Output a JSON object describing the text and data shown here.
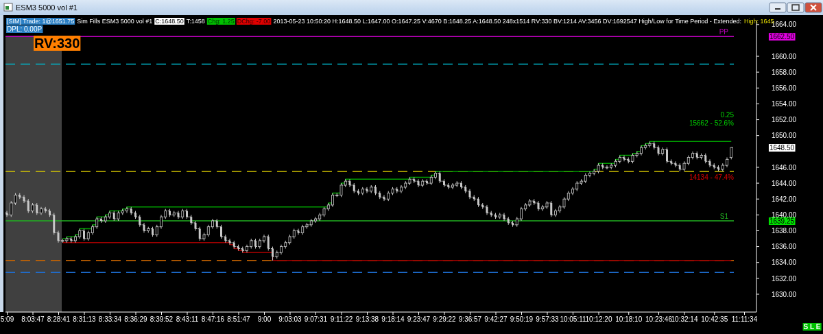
{
  "chart_data": {
    "type": "candlestick",
    "title": "ESM3  5000 vol  #1",
    "color": "#c8c8c8",
    "categories": [
      "5:09",
      null,
      null,
      null,
      null,
      null,
      "8:03:47",
      null,
      null,
      null,
      null,
      null,
      "8:28:41",
      null,
      null,
      null,
      null,
      null,
      "8:31:13",
      null,
      null,
      null,
      null,
      null,
      "8:33:34",
      null,
      null,
      null,
      null,
      null,
      "8:36:29",
      null,
      null,
      null,
      null,
      null,
      "8:39:52",
      null,
      null,
      null,
      null,
      null,
      "8:43:11",
      null,
      null,
      null,
      null,
      null,
      "8:47:16",
      null,
      null,
      null,
      null,
      null,
      "8:51:47",
      null,
      null,
      null,
      null,
      null,
      "9:00",
      null,
      null,
      null,
      null,
      null,
      "9:03:03",
      null,
      null,
      null,
      null,
      null,
      "9:07:31",
      null,
      null,
      null,
      null,
      null,
      "9:11:22",
      null,
      null,
      null,
      null,
      null,
      "9:13:38",
      null,
      null,
      null,
      null,
      null,
      "9:18:14",
      null,
      null,
      null,
      null,
      null,
      "9:23:47",
      null,
      null,
      null,
      null,
      null,
      "9:29:22",
      null,
      null,
      null,
      null,
      null,
      "9:36:57",
      null,
      null,
      null,
      null,
      null,
      "9:42:27",
      null,
      null,
      null,
      null,
      null,
      "9:50:19",
      null,
      null,
      null,
      null,
      null,
      "9:57:33",
      null,
      null,
      null,
      null,
      null,
      "10:05:11",
      null,
      null,
      null,
      null,
      null,
      "10:12:20",
      null,
      null,
      null,
      null,
      null,
      null,
      "10:18:10",
      null,
      null,
      null,
      null,
      null,
      null,
      "10:23:46",
      null,
      null,
      null,
      null,
      null,
      "10:32:14",
      null,
      null,
      null,
      null,
      null,
      null,
      "10:42:35",
      null,
      null,
      null,
      null,
      null,
      null,
      "11:11:34"
    ],
    "ohlc": [
      [
        1640.25,
        1640.5,
        1639.75,
        1640
      ],
      [
        1640,
        1641.75,
        1639.75,
        1641.5
      ],
      [
        1641.5,
        1642.75,
        1641.25,
        1642.5
      ],
      [
        1642.5,
        1642.75,
        1642,
        1642.25
      ],
      [
        1642.25,
        1642.5,
        1641.5,
        1641.75
      ],
      [
        1641.75,
        1642,
        1640.25,
        1640.5
      ],
      [
        1640.5,
        1641.5,
        1640.25,
        1641.25
      ],
      [
        1641.25,
        1641.5,
        1640,
        1640.25
      ],
      [
        1640.25,
        1641,
        1640,
        1640.75
      ],
      [
        1640.75,
        1641,
        1640.25,
        1640.5
      ],
      [
        1640.5,
        1640.75,
        1639.75,
        1640
      ],
      [
        1640,
        1640.25,
        1637.5,
        1637.75
      ],
      [
        1637.75,
        1638,
        1636.5,
        1636.75
      ],
      [
        1636.75,
        1637,
        1636.5,
        1636.75
      ],
      [
        1636.75,
        1637.25,
        1636.5,
        1637
      ],
      [
        1637,
        1637.25,
        1636.5,
        1636.75
      ],
      [
        1636.75,
        1637.5,
        1636.5,
        1637.25
      ],
      [
        1637.25,
        1638.25,
        1637,
        1638
      ],
      [
        1638,
        1638.25,
        1636.75,
        1637
      ],
      [
        1637,
        1638,
        1636.75,
        1637.75
      ],
      [
        1637.75,
        1638.75,
        1637.5,
        1638.5
      ],
      [
        1638.5,
        1639.75,
        1638.25,
        1639.5
      ],
      [
        1639.5,
        1639.75,
        1639,
        1639.25
      ],
      [
        1639.25,
        1640,
        1639,
        1639.75
      ],
      [
        1639.75,
        1640.5,
        1639.5,
        1640.25
      ],
      [
        1640.25,
        1640.5,
        1639.25,
        1639.5
      ],
      [
        1639.5,
        1640.5,
        1639.25,
        1640.25
      ],
      [
        1640.25,
        1640.75,
        1640,
        1640.5
      ],
      [
        1640.5,
        1641,
        1640.25,
        1640.75
      ],
      [
        1640.75,
        1641,
        1640,
        1640.25
      ],
      [
        1640.25,
        1640.5,
        1639.5,
        1639.75
      ],
      [
        1639.75,
        1640,
        1638.5,
        1638.75
      ],
      [
        1638.75,
        1639,
        1637.75,
        1638
      ],
      [
        1638,
        1638.5,
        1637.75,
        1638.25
      ],
      [
        1638.25,
        1638.5,
        1637.25,
        1637.5
      ],
      [
        1637.5,
        1638.75,
        1637.25,
        1638.5
      ],
      [
        1638.5,
        1640,
        1638.25,
        1639.75
      ],
      [
        1639.75,
        1640.75,
        1639.5,
        1640.5
      ],
      [
        1640.5,
        1640.75,
        1639.75,
        1640
      ],
      [
        1640,
        1640.5,
        1639.75,
        1640.25
      ],
      [
        1640.25,
        1640.5,
        1639.5,
        1639.75
      ],
      [
        1639.75,
        1640.75,
        1639.5,
        1640.5
      ],
      [
        1640.5,
        1640.75,
        1639.5,
        1639.75
      ],
      [
        1639.75,
        1640,
        1638.75,
        1639
      ],
      [
        1639,
        1639.25,
        1638,
        1638.25
      ],
      [
        1638.25,
        1638.5,
        1636.75,
        1637
      ],
      [
        1637,
        1637.75,
        1636.75,
        1637.5
      ],
      [
        1637.5,
        1638.75,
        1637.25,
        1638.5
      ],
      [
        1638.5,
        1639.5,
        1638.25,
        1639.25
      ],
      [
        1639.25,
        1639.5,
        1638.25,
        1638.5
      ],
      [
        1638.5,
        1638.75,
        1637,
        1637.25
      ],
      [
        1637.25,
        1637.5,
        1636.5,
        1636.75
      ],
      [
        1636.75,
        1637,
        1636.25,
        1636.5
      ],
      [
        1636.5,
        1636.75,
        1635.75,
        1636
      ],
      [
        1636,
        1636.25,
        1635.5,
        1635.75
      ],
      [
        1635.75,
        1636,
        1635.25,
        1635.5
      ],
      [
        1635.5,
        1636.25,
        1635.25,
        1636
      ],
      [
        1636,
        1637,
        1635.75,
        1636.75
      ],
      [
        1636.75,
        1637,
        1635.75,
        1636
      ],
      [
        1636,
        1637,
        1635.75,
        1636.75
      ],
      [
        1636.75,
        1637.5,
        1636.5,
        1637.25
      ],
      [
        1637.25,
        1637.5,
        1635.5,
        1635.75
      ],
      [
        1635.75,
        1636,
        1634.25,
        1634.75
      ],
      [
        1634.75,
        1635.5,
        1634.5,
        1635.25
      ],
      [
        1635.25,
        1636.25,
        1635,
        1636
      ],
      [
        1636,
        1636.75,
        1635.75,
        1636.5
      ],
      [
        1636.5,
        1637.5,
        1636.25,
        1637.25
      ],
      [
        1637.25,
        1638.25,
        1637,
        1638
      ],
      [
        1638,
        1638.25,
        1637.5,
        1637.75
      ],
      [
        1637.75,
        1638.75,
        1637.5,
        1638.5
      ],
      [
        1638.5,
        1639,
        1638.25,
        1638.75
      ],
      [
        1638.75,
        1639.5,
        1638.5,
        1639.25
      ],
      [
        1639.25,
        1639.75,
        1639,
        1639.5
      ],
      [
        1639.5,
        1640.25,
        1639.25,
        1640
      ],
      [
        1640,
        1641,
        1639.75,
        1640.75
      ],
      [
        1640.75,
        1641.5,
        1640.5,
        1641.25
      ],
      [
        1641.25,
        1642.75,
        1641,
        1642.5
      ],
      [
        1642.5,
        1642.75,
        1642.25,
        1642.5
      ],
      [
        1642.5,
        1644,
        1642.25,
        1643.75
      ],
      [
        1643.75,
        1644.5,
        1643.5,
        1644.25
      ],
      [
        1644.25,
        1644.5,
        1643.5,
        1643.75
      ],
      [
        1643.75,
        1644,
        1642.75,
        1643
      ],
      [
        1643,
        1643.25,
        1642.5,
        1642.75
      ],
      [
        1642.75,
        1643.5,
        1642.5,
        1643.25
      ],
      [
        1643.25,
        1643.5,
        1642.75,
        1643
      ],
      [
        1643,
        1643.75,
        1642.75,
        1643.5
      ],
      [
        1643.5,
        1643.75,
        1642.5,
        1642.75
      ],
      [
        1642.75,
        1643,
        1642,
        1642.25
      ],
      [
        1642.25,
        1642.5,
        1641.75,
        1642
      ],
      [
        1642,
        1643,
        1641.75,
        1642.75
      ],
      [
        1642.75,
        1643.5,
        1642.5,
        1643.25
      ],
      [
        1643.25,
        1643.5,
        1642.75,
        1643
      ],
      [
        1643,
        1643.75,
        1642.75,
        1643.5
      ],
      [
        1643.5,
        1644.25,
        1643.25,
        1644
      ],
      [
        1644,
        1644.75,
        1643.75,
        1644.5
      ],
      [
        1644.5,
        1644.75,
        1644,
        1644.25
      ],
      [
        1644.25,
        1644.5,
        1643.5,
        1643.75
      ],
      [
        1643.75,
        1644.5,
        1643.5,
        1644.25
      ],
      [
        1644.25,
        1644.5,
        1643.75,
        1644
      ],
      [
        1644,
        1645,
        1643.75,
        1644.75
      ],
      [
        1644.75,
        1645.5,
        1644.5,
        1645.25
      ],
      [
        1645.25,
        1645.5,
        1644,
        1644.25
      ],
      [
        1644.25,
        1644.5,
        1643.5,
        1643.75
      ],
      [
        1643.75,
        1644,
        1643.25,
        1643.5
      ],
      [
        1643.5,
        1644,
        1643.25,
        1643.75
      ],
      [
        1643.75,
        1644.25,
        1643.5,
        1644
      ],
      [
        1644,
        1644.25,
        1643.25,
        1643.5
      ],
      [
        1643.5,
        1643.75,
        1642.75,
        1643
      ],
      [
        1643,
        1643.25,
        1642,
        1642.25
      ],
      [
        1642.25,
        1642.5,
        1641.75,
        1642
      ],
      [
        1642,
        1642.25,
        1641,
        1641.25
      ],
      [
        1641.25,
        1641.5,
        1640.75,
        1641
      ],
      [
        1641,
        1641.25,
        1640,
        1640.25
      ],
      [
        1640.25,
        1640.5,
        1639.75,
        1640
      ],
      [
        1640,
        1640.25,
        1639.5,
        1639.75
      ],
      [
        1639.75,
        1640.25,
        1639.5,
        1640
      ],
      [
        1640,
        1640.25,
        1639.25,
        1639.5
      ],
      [
        1639.5,
        1639.75,
        1638.75,
        1639
      ],
      [
        1639,
        1639.25,
        1638.5,
        1638.75
      ],
      [
        1638.75,
        1639.75,
        1638.5,
        1639.5
      ],
      [
        1639.5,
        1641,
        1639.25,
        1640.75
      ],
      [
        1640.75,
        1641.5,
        1640.5,
        1641.25
      ],
      [
        1641.25,
        1642,
        1641,
        1641.75
      ],
      [
        1641.75,
        1642,
        1641.25,
        1641.5
      ],
      [
        1641.5,
        1641.75,
        1640.5,
        1640.75
      ],
      [
        1640.75,
        1641.25,
        1640.5,
        1641
      ],
      [
        1641,
        1641.75,
        1640.75,
        1641.5
      ],
      [
        1641.5,
        1641.75,
        1639.75,
        1640
      ],
      [
        1640,
        1640.75,
        1639.75,
        1640.5
      ],
      [
        1640.5,
        1641.25,
        1640.25,
        1641
      ],
      [
        1641,
        1642.25,
        1640.75,
        1642
      ],
      [
        1642,
        1643,
        1641.75,
        1642.75
      ],
      [
        1642.75,
        1643.5,
        1642.5,
        1643.25
      ],
      [
        1643.25,
        1644.25,
        1643,
        1644
      ],
      [
        1644,
        1644.5,
        1643.75,
        1644.25
      ],
      [
        1644.25,
        1645.25,
        1644,
        1645
      ],
      [
        1645,
        1645.5,
        1644.75,
        1645.25
      ],
      [
        1645.25,
        1645.75,
        1645,
        1645.5
      ],
      [
        1645.5,
        1646.5,
        1645.25,
        1646.25
      ],
      [
        1646.25,
        1646.5,
        1645.75,
        1646
      ],
      [
        1646,
        1646.25,
        1645.75,
        1646
      ],
      [
        1646,
        1646.5,
        1645.75,
        1646.25
      ],
      [
        1646.25,
        1647,
        1646,
        1646.75
      ],
      [
        1646.75,
        1647.5,
        1646.5,
        1647.25
      ],
      [
        1647.25,
        1647.5,
        1646.75,
        1647
      ],
      [
        1647,
        1647.25,
        1646.5,
        1646.75
      ],
      [
        1646.75,
        1647.75,
        1646.5,
        1647.5
      ],
      [
        1647.5,
        1648,
        1647.25,
        1647.75
      ],
      [
        1647.75,
        1648.75,
        1647.5,
        1648.5
      ],
      [
        1648.5,
        1649,
        1648.25,
        1648.75
      ],
      [
        1648.75,
        1649.25,
        1648.5,
        1649
      ],
      [
        1649,
        1649.25,
        1648.25,
        1648.5
      ],
      [
        1648.5,
        1648.75,
        1647.5,
        1647.75
      ],
      [
        1647.75,
        1648.5,
        1647.5,
        1648.25
      ],
      [
        1648.25,
        1648.5,
        1646.5,
        1646.75
      ],
      [
        1646.75,
        1647,
        1646.25,
        1646.5
      ],
      [
        1646.5,
        1646.75,
        1646,
        1646.25
      ],
      [
        1646.25,
        1646.5,
        1645.5,
        1645.75
      ],
      [
        1645.75,
        1646.75,
        1645.5,
        1646.5
      ],
      [
        1646.5,
        1647.5,
        1646.25,
        1647.25
      ],
      [
        1647.25,
        1648,
        1647,
        1647.75
      ],
      [
        1647.75,
        1648,
        1647,
        1647.25
      ],
      [
        1647.25,
        1647.75,
        1647,
        1647.5
      ],
      [
        1647.5,
        1647.75,
        1646.5,
        1646.75
      ],
      [
        1646.75,
        1647,
        1646,
        1646.25
      ],
      [
        1646.25,
        1646.5,
        1645.75,
        1646
      ],
      [
        1646,
        1646.25,
        1645.5,
        1645.75
      ],
      [
        1645.75,
        1646.5,
        1645.5,
        1646.25
      ],
      [
        1646.25,
        1647.25,
        1646,
        1647
      ],
      [
        1647.25,
        1648.5,
        1647,
        1648.5
      ],
      null,
      null,
      null
    ],
    "series": [
      {
        "type": "step",
        "color": "#00a000",
        "values": [
          null,
          null,
          null,
          null,
          null,
          null,
          null,
          null,
          null,
          null,
          null,
          null,
          null,
          1637,
          1637.25,
          1637.25,
          1637.5,
          1638.25,
          1638.25,
          1638.25,
          1638.75,
          1639.75,
          1639.75,
          1640,
          1640.5,
          1640.5,
          1640.5,
          1640.75,
          1641,
          1641,
          1641,
          1641,
          1641,
          1641,
          1641,
          1641,
          1641,
          1641,
          1641,
          1641,
          1641,
          1641,
          1641,
          1641,
          1641,
          1641,
          1641,
          1641,
          1641,
          1641,
          1641,
          1641,
          1641,
          1641,
          1641,
          1641,
          1641,
          1641,
          1641,
          1641,
          1641,
          1641,
          1641,
          1641,
          1641,
          1641,
          1641,
          1641,
          1641,
          1641,
          1641,
          1641,
          1641,
          1641,
          1641,
          1641.5,
          1642.75,
          1642.75,
          1644,
          1644.5,
          1644.5,
          1644.5,
          1644.5,
          1644.5,
          1644.5,
          1644.5,
          1644.5,
          1644.5,
          1644.5,
          1644.5,
          1644.5,
          1644.5,
          1644.5,
          1644.5,
          1644.75,
          1644.75,
          1644.75,
          1644.75,
          1644.75,
          1645,
          1645.5,
          1645.5,
          1645.5,
          1645.5,
          1645.5,
          1645.5,
          1645.5,
          1645.5,
          1645.5,
          1645.5,
          1645.5,
          1645.5,
          1645.5,
          1645.5,
          1645.5,
          1645.5,
          1645.5,
          1645.5,
          1645.5,
          1645.5,
          1645.5,
          1645.5,
          1645.5,
          1645.5,
          1645.5,
          1645.5,
          1645.5,
          1645.5,
          1645.5,
          1645.5,
          1645.5,
          1645.5,
          1645.5,
          1645.5,
          1645.5,
          1645.5,
          1645.5,
          1645.75,
          1646.5,
          1646.5,
          1646.5,
          1646.5,
          1647,
          1647.5,
          1647.5,
          1647.5,
          1647.75,
          1648,
          1648.75,
          1649,
          1649.25,
          1649.25,
          1649.25,
          1649.25,
          1649.25,
          1649.25,
          1649.25,
          1649.25,
          1649.25,
          1649.25,
          1649.25,
          1649.25,
          1649.25,
          1649.25,
          1649.25,
          1649.25,
          1649.25,
          1649.25,
          1649.25,
          1649.25,
          null,
          null,
          null
        ]
      },
      {
        "type": "step",
        "color": "#a00000",
        "values": [
          null,
          null,
          null,
          null,
          null,
          null,
          null,
          null,
          null,
          null,
          null,
          null,
          null,
          1636.5,
          1636.5,
          1636.5,
          1636.5,
          1636.5,
          1636.5,
          1636.5,
          1636.5,
          1636.5,
          1636.5,
          1636.5,
          1636.5,
          1636.5,
          1636.5,
          1636.5,
          1636.5,
          1636.5,
          1636.5,
          1636.5,
          1636.5,
          1636.5,
          1636.5,
          1636.5,
          1636.5,
          1636.5,
          1636.5,
          1636.5,
          1636.5,
          1636.5,
          1636.5,
          1636.5,
          1636.5,
          1636.5,
          1636.5,
          1636.5,
          1636.5,
          1636.5,
          1636.5,
          1636.5,
          1636.25,
          1635.75,
          1635.5,
          1635.25,
          1635.25,
          1635.25,
          1635.25,
          1635.25,
          1635.25,
          1635.25,
          1634.25,
          1634.25,
          1634.25,
          1634.25,
          1634.25,
          1634.25,
          1634.25,
          1634.25,
          1634.25,
          1634.25,
          1634.25,
          1634.25,
          1634.25,
          1634.25,
          1634.25,
          1634.25,
          1634.25,
          1634.25,
          1634.25,
          1634.25,
          1634.25,
          1634.25,
          1634.25,
          1634.25,
          1634.25,
          1634.25,
          1634.25,
          1634.25,
          1634.25,
          1634.25,
          1634.25,
          1634.25,
          1634.25,
          1634.25,
          1634.25,
          1634.25,
          1634.25,
          1634.25,
          1634.25,
          1634.25,
          1634.25,
          1634.25,
          1634.25,
          1634.25,
          1634.25,
          1634.25,
          1634.25,
          1634.25,
          1634.25,
          1634.25,
          1634.25,
          1634.25,
          1634.25,
          1634.25,
          1634.25,
          1634.25,
          1634.25,
          1634.25,
          1634.25,
          1634.25,
          1634.25,
          1634.25,
          1634.25,
          1634.25,
          1634.25,
          1634.25,
          1634.25,
          1634.25,
          1634.25,
          1634.25,
          1634.25,
          1634.25,
          1634.25,
          1634.25,
          1634.25,
          1634.25,
          1634.25,
          1634.25,
          1634.25,
          1634.25,
          1634.25,
          1634.25,
          1634.25,
          1634.25,
          1634.25,
          1634.25,
          1634.25,
          1634.25,
          1634.25,
          1634.25,
          1634.25,
          1634.25,
          1634.25,
          1634.25,
          1634.25,
          1634.25,
          1634.25,
          1634.25,
          1634.25,
          1634.25,
          1634.25,
          1634.25,
          1634.25,
          1634.25,
          1634.25,
          1634.25,
          1634.25,
          1634.25,
          null,
          null,
          null
        ]
      }
    ],
    "ylim": [
      1627.75,
      1664.5
    ],
    "yticks": [
      {
        "value": 1630,
        "label": "1630.00"
      },
      {
        "value": 1632,
        "label": "1632.00"
      },
      {
        "value": 1634,
        "label": "1634.00"
      },
      {
        "value": 1636,
        "label": "1636.00"
      },
      {
        "value": 1638,
        "label": "1638.00"
      },
      {
        "value": 1640,
        "label": "1640.00"
      },
      {
        "value": 1642,
        "label": "1642.00"
      },
      {
        "value": 1644,
        "label": "1644.00"
      },
      {
        "value": 1646,
        "label": "1646.00"
      },
      {
        "value": 1650,
        "label": "1650.00"
      },
      {
        "value": 1652,
        "label": "1652.00"
      },
      {
        "value": 1654,
        "label": "1654.00"
      },
      {
        "value": 1656,
        "label": "1656.00"
      },
      {
        "value": 1658,
        "label": "1658.00"
      },
      {
        "value": 1660,
        "label": "1660.00"
      },
      {
        "value": 1664,
        "label": "1664.00"
      }
    ],
    "ref_lines": [
      {
        "axis": "y",
        "value": 1662.5,
        "label": "PP",
        "color": "#c000c0",
        "line_style": "solid"
      },
      {
        "axis": "y",
        "value": 1659,
        "color": "#00b4c8",
        "line_style": "dashed"
      },
      {
        "axis": "y",
        "value": 1645.5,
        "color": "#d8c800",
        "line_style": "dashed"
      },
      {
        "axis": "y",
        "value": 1639.25,
        "label": "S1",
        "color": "#20b020",
        "line_style": "solid"
      },
      {
        "axis": "y",
        "value": 1634.25,
        "color": "#c86400",
        "line_style": "dashed"
      },
      {
        "axis": "y",
        "value": 1632.75,
        "color": "#1e6ed2",
        "line_style": "dashed"
      }
    ],
    "bands": [
      {
        "axis": "x",
        "from": "5:09",
        "to": "8:28:41",
        "color": "#404040"
      }
    ],
    "annotations": [
      "[SIM]  Trade: 1@1651.75",
      "Sim Fills  ESM3  5000 vol  #1",
      "C:1648.50",
      "T:1458",
      "Chg: 1.25",
      "DChg: -7.00",
      "2013-05-23 10:50:20 H:1648.50 L:1647.00 O:1647.25 V:4670 B:1648.25 A:1648.50 248x1514 RV:330 BV:1214 AV:3456 DV:1692547  High/Low for Time Period - Extended:",
      "High: 1645",
      "DPL: 0.00P",
      "RV:330",
      "0.25",
      "15662 - 52.6%",
      "14134 - 47.4%",
      "S L E",
      "1662.50",
      "1648.50",
      "1639.25"
    ]
  }
}
